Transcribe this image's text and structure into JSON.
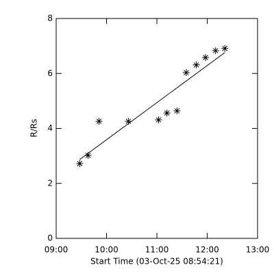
{
  "chart_data": {
    "type": "scatter",
    "x_label": "Start Time (03-Oct-25 08:54:21)",
    "y_label": "R/Rs",
    "x": [
      568,
      578,
      591,
      626,
      662,
      672,
      684,
      695,
      707,
      718,
      730,
      741
    ],
    "values": [
      2.72,
      3.02,
      4.26,
      4.26,
      4.31,
      4.56,
      4.64,
      6.03,
      6.31,
      6.58,
      6.83,
      6.91
    ],
    "color": "#000000",
    "fit": {
      "x": [
        568,
        741
      ],
      "values": [
        2.87,
        6.76
      ]
    },
    "xlim": [
      540,
      780
    ],
    "xticks": [
      {
        "value": 540,
        "label": "09:00"
      },
      {
        "value": 600,
        "label": "10:00"
      },
      {
        "value": 660,
        "label": "11:00"
      },
      {
        "value": 720,
        "label": "12:00"
      },
      {
        "value": 780,
        "label": "13:00"
      }
    ],
    "ylim": [
      0,
      8
    ],
    "yticks": [
      0,
      2,
      4,
      6,
      8
    ]
  }
}
